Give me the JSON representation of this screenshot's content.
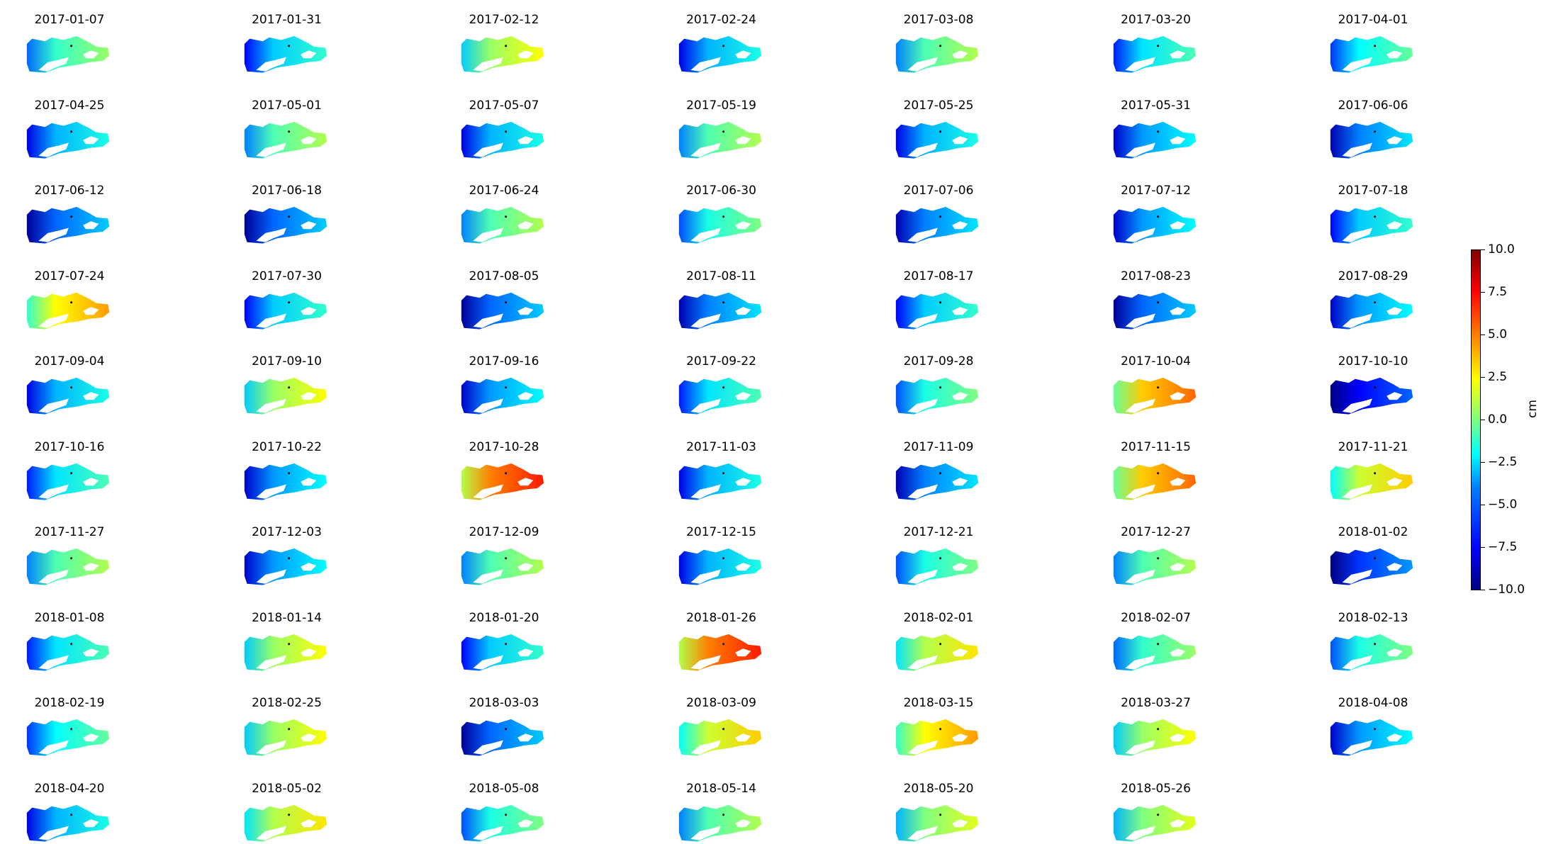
{
  "chart_data": {
    "type": "heatmap",
    "panel_titles": [
      "2017-01-07",
      "2017-01-31",
      "2017-02-12",
      "2017-02-24",
      "2017-03-08",
      "2017-03-20",
      "2017-04-01",
      "2017-04-25",
      "2017-05-01",
      "2017-05-07",
      "2017-05-19",
      "2017-05-25",
      "2017-05-31",
      "2017-06-06",
      "2017-06-12",
      "2017-06-18",
      "2017-06-24",
      "2017-06-30",
      "2017-07-06",
      "2017-07-12",
      "2017-07-18",
      "2017-07-24",
      "2017-07-30",
      "2017-08-05",
      "2017-08-11",
      "2017-08-17",
      "2017-08-23",
      "2017-08-29",
      "2017-09-04",
      "2017-09-10",
      "2017-09-16",
      "2017-09-22",
      "2017-09-28",
      "2017-10-04",
      "2017-10-10",
      "2017-10-16",
      "2017-10-22",
      "2017-10-28",
      "2017-11-03",
      "2017-11-09",
      "2017-11-15",
      "2017-11-21",
      "2017-11-27",
      "2017-12-03",
      "2017-12-09",
      "2017-12-15",
      "2017-12-21",
      "2017-12-27",
      "2018-01-02",
      "2018-01-08",
      "2018-01-14",
      "2018-01-20",
      "2018-01-26",
      "2018-02-01",
      "2018-02-07",
      "2018-02-13",
      "2018-02-19",
      "2018-02-25",
      "2018-03-03",
      "2018-03-09",
      "2018-03-15",
      "2018-03-27",
      "2018-04-08",
      "2018-04-20",
      "2018-05-02",
      "2018-05-08",
      "2018-05-14",
      "2018-05-20",
      "2018-05-26"
    ],
    "panel_mean_cm": [
      -1.5,
      -3.5,
      0.5,
      -4.0,
      -1.0,
      -3.0,
      -2.5,
      -4.0,
      -1.0,
      -4.0,
      -1.0,
      -4.0,
      -4.5,
      -5.0,
      -5.5,
      -5.5,
      -1.0,
      -2.0,
      -5.0,
      -4.5,
      -3.5,
      2.5,
      -3.5,
      -5.5,
      -5.0,
      -3.5,
      -5.5,
      -4.5,
      -4.0,
      0.5,
      -4.5,
      -3.0,
      -2.0,
      3.5,
      -7.5,
      -3.0,
      -4.5,
      5.0,
      -4.0,
      -5.0,
      3.5,
      1.5,
      -1.0,
      -4.5,
      -1.0,
      -4.0,
      -2.0,
      -1.0,
      -6.5,
      -3.0,
      0.5,
      -3.5,
      5.0,
      1.0,
      -1.5,
      -2.0,
      -2.5,
      0.5,
      -5.5,
      1.5,
      2.5,
      0.5,
      -4.5,
      -4.0,
      1.0,
      -2.0,
      -1.0,
      0.0,
      0.0
    ],
    "colorbar": {
      "label": "cm",
      "min": -10.0,
      "max": 10.0,
      "ticks": [
        {
          "value": 10.0,
          "label": "10.0"
        },
        {
          "value": 7.5,
          "label": "7.5"
        },
        {
          "value": 5.0,
          "label": "5.0"
        },
        {
          "value": 2.5,
          "label": "2.5"
        },
        {
          "value": 0.0,
          "label": "0.0"
        },
        {
          "value": -2.5,
          "label": "−2.5"
        },
        {
          "value": -5.0,
          "label": "−5.0"
        },
        {
          "value": -7.5,
          "label": "−7.5"
        },
        {
          "value": -10.0,
          "label": "−10.0"
        }
      ],
      "colormap": "jet"
    },
    "grid": false,
    "legend": "right"
  }
}
